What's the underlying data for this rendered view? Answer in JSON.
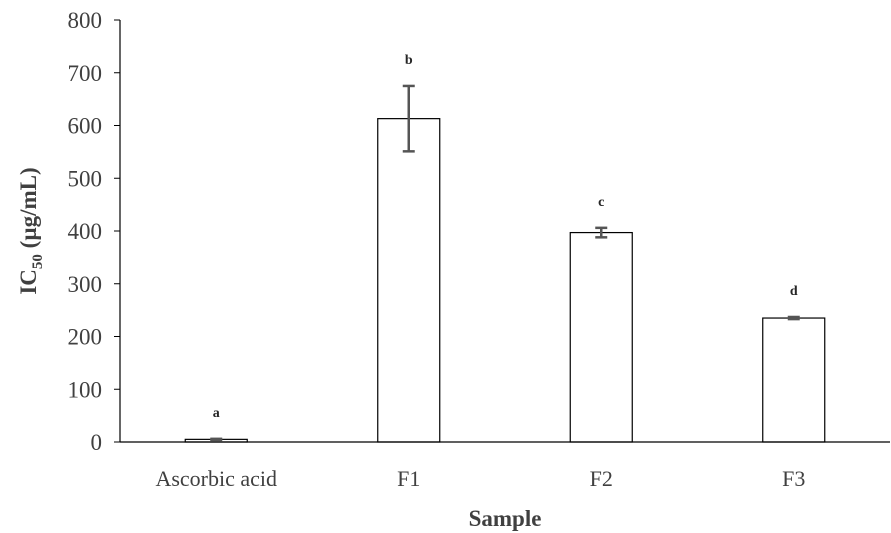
{
  "chart_data": {
    "type": "bar",
    "categories": [
      "Ascorbic acid",
      "F1",
      "F2",
      "F3"
    ],
    "values": [
      5,
      613,
      397,
      235
    ],
    "errors": [
      1,
      62,
      9,
      2
    ],
    "significance_labels": [
      "a",
      "b",
      "c",
      "d"
    ],
    "xlabel": "Sample",
    "ylabel": {
      "main": "IC",
      "subscript": "50",
      "unit": " (µg/mL)"
    },
    "ylim": [
      0,
      800
    ],
    "yticks": [
      0,
      100,
      200,
      300,
      400,
      500,
      600,
      700,
      800
    ],
    "grid": false,
    "legend": "none",
    "colors": {
      "bar_fill": "#ffffff",
      "bar_stroke": "#000000",
      "axis": "#000000",
      "error_bar": "#555555",
      "text": "#404040"
    }
  }
}
